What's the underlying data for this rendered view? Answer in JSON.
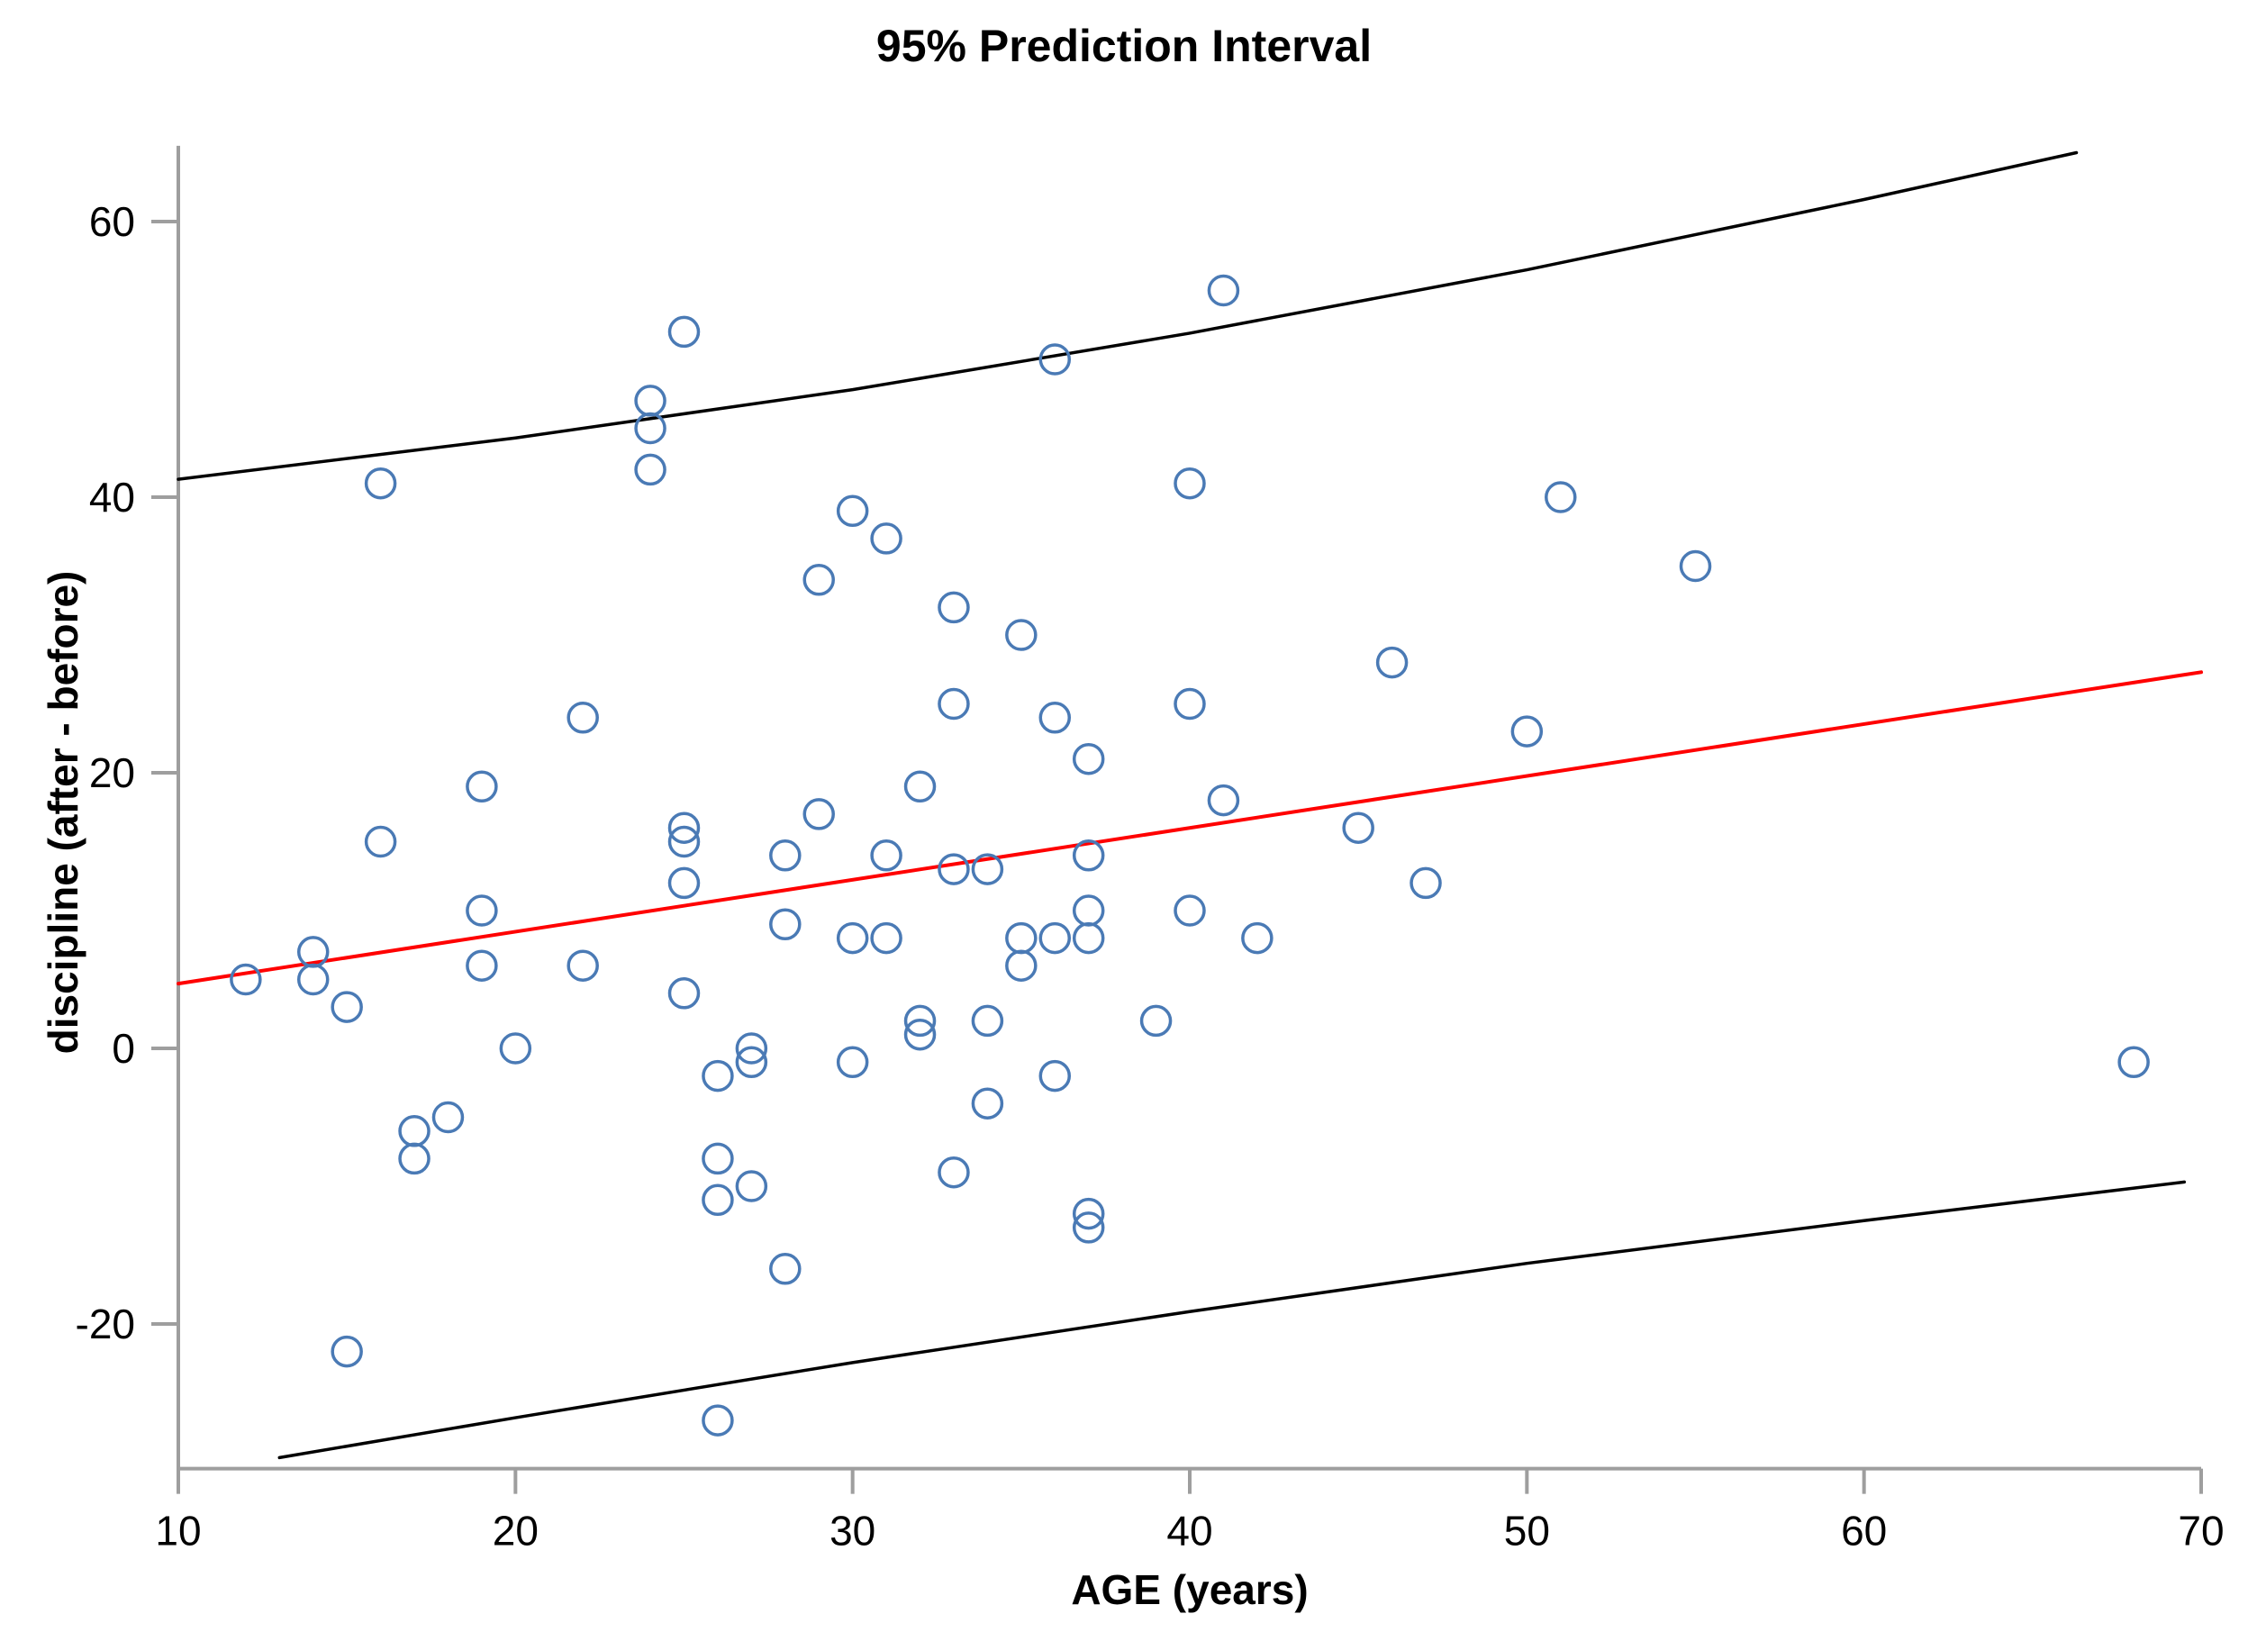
{
  "title": "95% Prediction Interval",
  "colors": {
    "point_stroke": "#4a7ab5",
    "regression": "#ff0000",
    "interval_bound": "#000000",
    "axis": "#9e9e9e",
    "tick_text": "#000000"
  },
  "chart_data": {
    "type": "scatter",
    "title": "95% Prediction Interval",
    "xlabel": "AGE (years)",
    "ylabel": "discipline (after - before)",
    "xlim": [
      10,
      70
    ],
    "ylim": [
      -30.5,
      65.5
    ],
    "x_ticks": [
      10,
      20,
      30,
      40,
      50,
      60,
      70
    ],
    "y_ticks": [
      -20,
      0,
      20,
      40,
      60
    ],
    "grid": false,
    "legend": false,
    "points": [
      [
        12,
        5
      ],
      [
        14,
        7
      ],
      [
        14,
        5
      ],
      [
        15,
        3
      ],
      [
        15,
        -22
      ],
      [
        16,
        41
      ],
      [
        16,
        15
      ],
      [
        17,
        -6
      ],
      [
        17,
        -8
      ],
      [
        18,
        -5
      ],
      [
        19,
        19
      ],
      [
        19,
        10
      ],
      [
        19,
        6
      ],
      [
        20,
        0
      ],
      [
        22,
        24
      ],
      [
        22,
        6
      ],
      [
        24,
        47
      ],
      [
        24,
        45
      ],
      [
        24,
        42
      ],
      [
        25,
        52
      ],
      [
        25,
        16
      ],
      [
        25,
        15
      ],
      [
        25,
        12
      ],
      [
        25,
        4
      ],
      [
        26,
        -2
      ],
      [
        26,
        -8
      ],
      [
        26,
        -11
      ],
      [
        26,
        -27
      ],
      [
        27,
        0
      ],
      [
        27,
        -1
      ],
      [
        27,
        -10
      ],
      [
        28,
        14
      ],
      [
        28,
        9
      ],
      [
        28,
        -16
      ],
      [
        29,
        34
      ],
      [
        29,
        17
      ],
      [
        30,
        39
      ],
      [
        30,
        8
      ],
      [
        30,
        -1
      ],
      [
        31,
        37
      ],
      [
        31,
        14
      ],
      [
        31,
        8
      ],
      [
        32,
        19
      ],
      [
        32,
        2
      ],
      [
        32,
        1
      ],
      [
        33,
        32
      ],
      [
        33,
        25
      ],
      [
        33,
        13
      ],
      [
        33,
        -9
      ],
      [
        34,
        13
      ],
      [
        34,
        2
      ],
      [
        34,
        -4
      ],
      [
        35,
        30
      ],
      [
        35,
        8
      ],
      [
        35,
        6
      ],
      [
        36,
        50
      ],
      [
        36,
        24
      ],
      [
        36,
        8
      ],
      [
        36,
        -2
      ],
      [
        37,
        21
      ],
      [
        37,
        14
      ],
      [
        37,
        10
      ],
      [
        37,
        8
      ],
      [
        37,
        -12
      ],
      [
        37,
        -13
      ],
      [
        39,
        2
      ],
      [
        40,
        41
      ],
      [
        40,
        25
      ],
      [
        40,
        10
      ],
      [
        41,
        55
      ],
      [
        41,
        18
      ],
      [
        42,
        8
      ],
      [
        45,
        16
      ],
      [
        46,
        28
      ],
      [
        47,
        12
      ],
      [
        50,
        23
      ],
      [
        51,
        40
      ],
      [
        55,
        35
      ],
      [
        68,
        -1
      ]
    ],
    "regression_line": [
      [
        10,
        4.7
      ],
      [
        70,
        27.3
      ]
    ],
    "upper_interval": [
      [
        10,
        41.3
      ],
      [
        20,
        44.3
      ],
      [
        30,
        47.8
      ],
      [
        40,
        51.9
      ],
      [
        50,
        56.5
      ],
      [
        60,
        61.6
      ],
      [
        66.3,
        65.0
      ]
    ],
    "lower_interval": [
      [
        13,
        -29.7
      ],
      [
        20,
        -26.8
      ],
      [
        30,
        -22.8
      ],
      [
        40,
        -19.1
      ],
      [
        50,
        -15.6
      ],
      [
        60,
        -12.5
      ],
      [
        69.5,
        -9.7
      ]
    ]
  }
}
